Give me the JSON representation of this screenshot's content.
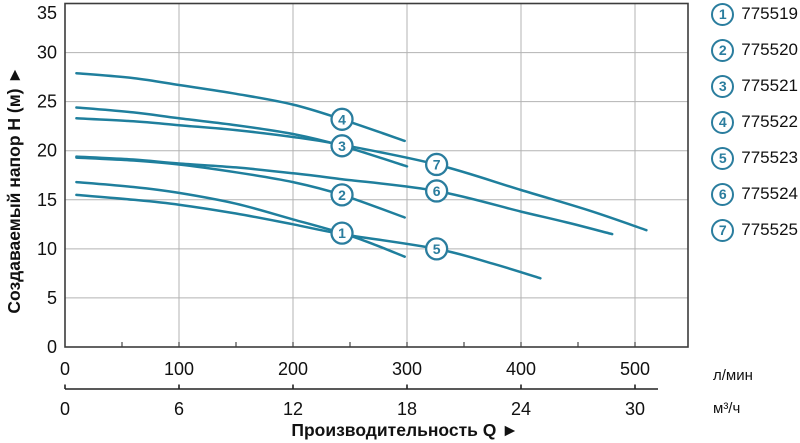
{
  "colors": {
    "curve": "#1f7f9d",
    "marker_ring": "#2a7d9e",
    "grid": "#b3b3b3",
    "frame": "#3c3c3c",
    "axis": "#222222",
    "text": "#111111",
    "background": "#ffffff"
  },
  "chart_data": {
    "type": "line",
    "title": "",
    "xlabel": "Производительность Q ►",
    "ylabel": "Создаваемый напор H (м) ►",
    "x_unit_primary": "л/мин",
    "x_unit_secondary": "м³/ч",
    "x_ticks_lmin": [
      0,
      100,
      200,
      300,
      400,
      500
    ],
    "x_minor_step_lmin": 50,
    "x_ticks_m3h": [
      0,
      6,
      12,
      18,
      24,
      30
    ],
    "y_ticks": [
      0,
      5,
      10,
      15,
      20,
      25,
      30,
      35
    ],
    "x_range_lmin": [
      0,
      546
    ],
    "y_range": [
      0,
      35
    ],
    "grid": true,
    "legend_position": "right",
    "series": [
      {
        "label": "1",
        "code": "775519",
        "points": [
          [
            10,
            16.8
          ],
          [
            60,
            16.3
          ],
          [
            100,
            15.7
          ],
          [
            150,
            14.6
          ],
          [
            200,
            13.0
          ],
          [
            243,
            11.6
          ],
          [
            270,
            10.5
          ],
          [
            298,
            9.2
          ]
        ],
        "marker": [
          243,
          11.6
        ]
      },
      {
        "label": "2",
        "code": "775520",
        "points": [
          [
            10,
            19.3
          ],
          [
            60,
            19.0
          ],
          [
            100,
            18.6
          ],
          [
            150,
            17.8
          ],
          [
            200,
            16.8
          ],
          [
            243,
            15.5
          ],
          [
            298,
            13.2
          ]
        ],
        "marker": [
          243,
          15.5
        ]
      },
      {
        "label": "3",
        "code": "775521",
        "points": [
          [
            10,
            24.4
          ],
          [
            60,
            23.9
          ],
          [
            100,
            23.3
          ],
          [
            150,
            22.6
          ],
          [
            200,
            21.7
          ],
          [
            243,
            20.5
          ],
          [
            300,
            18.4
          ]
        ],
        "marker": [
          243,
          20.5
        ]
      },
      {
        "label": "4",
        "code": "775522",
        "points": [
          [
            10,
            27.9
          ],
          [
            60,
            27.4
          ],
          [
            100,
            26.7
          ],
          [
            150,
            25.8
          ],
          [
            200,
            24.7
          ],
          [
            243,
            23.2
          ],
          [
            298,
            21.0
          ]
        ],
        "marker": [
          243,
          23.2
        ]
      },
      {
        "label": "5",
        "code": "775523",
        "points": [
          [
            10,
            15.5
          ],
          [
            60,
            15.0
          ],
          [
            100,
            14.5
          ],
          [
            150,
            13.6
          ],
          [
            200,
            12.5
          ],
          [
            243,
            11.5
          ],
          [
            326,
            10.0
          ],
          [
            375,
            8.5
          ],
          [
            417,
            7.0
          ]
        ],
        "marker": [
          326,
          10.0
        ]
      },
      {
        "label": "6",
        "code": "775524",
        "points": [
          [
            10,
            19.4
          ],
          [
            60,
            19.1
          ],
          [
            100,
            18.7
          ],
          [
            150,
            18.3
          ],
          [
            200,
            17.7
          ],
          [
            243,
            17.1
          ],
          [
            326,
            15.9
          ],
          [
            400,
            13.8
          ],
          [
            440,
            12.7
          ],
          [
            480,
            11.5
          ]
        ],
        "marker": [
          326,
          15.9
        ]
      },
      {
        "label": "7",
        "code": "775525",
        "points": [
          [
            10,
            23.3
          ],
          [
            60,
            23.0
          ],
          [
            100,
            22.6
          ],
          [
            150,
            22.1
          ],
          [
            200,
            21.4
          ],
          [
            243,
            20.6
          ],
          [
            326,
            18.6
          ],
          [
            400,
            16.0
          ],
          [
            460,
            13.9
          ],
          [
            510,
            11.9
          ]
        ],
        "marker": [
          326,
          18.6
        ]
      }
    ]
  }
}
